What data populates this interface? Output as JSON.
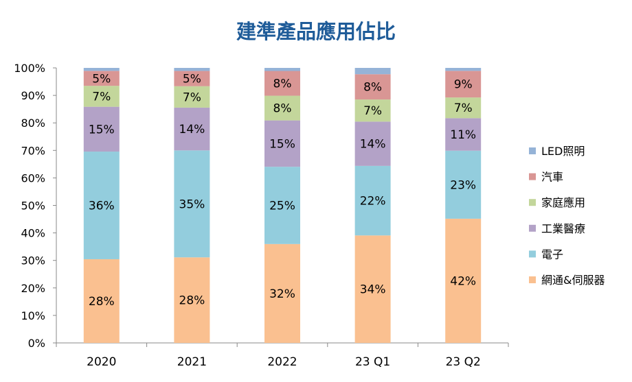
{
  "chart_data": {
    "type": "bar",
    "stacked": "percent",
    "title": "建準產品應用佔比",
    "categories": [
      "2020",
      "2021",
      "2022",
      "23 Q1",
      "23 Q2"
    ],
    "yticks": [
      "0%",
      "10%",
      "20%",
      "30%",
      "40%",
      "50%",
      "60%",
      "70%",
      "80%",
      "90%",
      "100%"
    ],
    "ylim": [
      0,
      100
    ],
    "grid": false,
    "legend_position": "right",
    "series": [
      {
        "name": "網通&伺服器",
        "color": "#FAC090",
        "values": [
          28,
          28,
          32,
          34,
          42
        ],
        "labels": [
          "28%",
          "28%",
          "32%",
          "34%",
          "42%"
        ]
      },
      {
        "name": "電子",
        "color": "#93CDDD",
        "values": [
          36,
          35,
          25,
          22,
          23
        ],
        "labels": [
          "36%",
          "35%",
          "25%",
          "22%",
          "23%"
        ]
      },
      {
        "name": "工業醫療",
        "color": "#B3A2C7",
        "values": [
          15,
          14,
          15,
          14,
          11
        ],
        "labels": [
          "15%",
          "14%",
          "15%",
          "14%",
          "11%"
        ]
      },
      {
        "name": "家庭應用",
        "color": "#C3D69B",
        "values": [
          7,
          7,
          8,
          7,
          7
        ],
        "labels": [
          "7%",
          "7%",
          "8%",
          "7%",
          "7%"
        ]
      },
      {
        "name": "汽車",
        "color": "#D99694",
        "values": [
          5,
          5,
          8,
          8,
          9
        ],
        "labels": [
          "5%",
          "5%",
          "8%",
          "8%",
          "9%"
        ]
      },
      {
        "name": "LED照明",
        "color": "#95B3D7",
        "values": [
          1,
          1,
          1,
          2,
          1
        ],
        "labels": [
          null,
          null,
          null,
          null,
          null
        ]
      }
    ]
  }
}
